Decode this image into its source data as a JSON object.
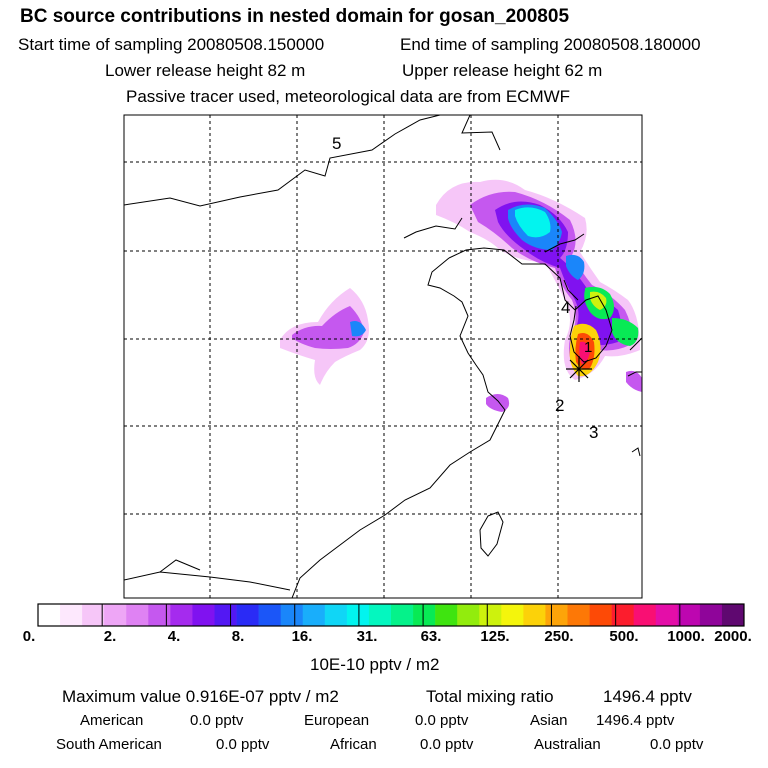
{
  "header": {
    "title": "BC  source contributions in nested domain for gosan_200805",
    "start_label": "Start time of sampling 20080508.150000",
    "end_label": "End time of sampling 20080508.180000",
    "lower_label": "Lower release height   82 m",
    "upper_label": "Upper release height   62 m",
    "tracer_note": "Passive tracer used, meteorological data are from ECMWF"
  },
  "map": {
    "region_labels": [
      "5",
      "4",
      "1",
      "2",
      "3"
    ],
    "receptor_marker": "station-star"
  },
  "colorbar": {
    "colors": [
      "#ffffff",
      "#fde8fd",
      "#f6c6f8",
      "#eea6f6",
      "#df82f3",
      "#c558ef",
      "#a52bee",
      "#8012f0",
      "#5318f3",
      "#2a2bf6",
      "#1b56f8",
      "#1a86fa",
      "#19aefb",
      "#10d6f6",
      "#02f4ef",
      "#04f7bf",
      "#05f28a",
      "#08ea55",
      "#3fe410",
      "#92ec0d",
      "#cdf20d",
      "#f4f50c",
      "#fcd209",
      "#fda409",
      "#fd7806",
      "#fd4a06",
      "#fc1d2d",
      "#f90f73",
      "#e40ea8",
      "#bd06b0",
      "#8f059a",
      "#5f0870"
    ],
    "tick_labels": [
      "0.",
      "2.",
      "4.",
      "8.",
      "16.",
      "31.",
      "63.",
      "125.",
      "250.",
      "500.",
      "1000.",
      "2000."
    ],
    "units": "10E-10 pptv / m2"
  },
  "stats": {
    "max_value": "Maximum value  0.916E-07 pptv / m2",
    "total_label": "Total mixing ratio",
    "total_value": "1496.4 pptv",
    "american_label": "American",
    "american_value": "0.0 pptv",
    "european_label": "European",
    "european_value": "0.0 pptv",
    "asian_label": "Asian",
    "asian_value": "1496.4 pptv",
    "south_american_label": "South American",
    "south_american_value": "0.0 pptv",
    "african_label": "African",
    "african_value": "0.0 pptv",
    "australian_label": "Australian",
    "australian_value": "0.0 pptv"
  }
}
